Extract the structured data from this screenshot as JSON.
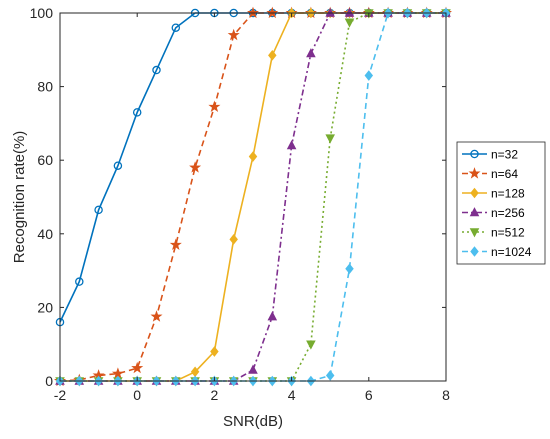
{
  "chart_data": {
    "type": "line",
    "xlabel": "SNR(dB)",
    "ylabel": "Recognition rate(%)",
    "xlim": [
      -2,
      8
    ],
    "ylim": [
      0,
      100
    ],
    "xticks": [
      "-2",
      "0",
      "2",
      "4",
      "6",
      "8"
    ],
    "yticks": [
      "0",
      "20",
      "40",
      "60",
      "80",
      "100"
    ],
    "grid": false,
    "legend_position": "right",
    "x": [
      -2,
      -1.5,
      -1,
      -0.5,
      0,
      0.5,
      1,
      1.5,
      2,
      2.5,
      3,
      3.5,
      4,
      4.5,
      5,
      5.5,
      6,
      6.5,
      7,
      7.5,
      8
    ],
    "series": [
      {
        "name": "n=32",
        "color": "#0072BD",
        "dash": "",
        "marker": "circle",
        "values": [
          16,
          27,
          46.5,
          58.5,
          73,
          84.5,
          96,
          100,
          100,
          100,
          100,
          100,
          100,
          100,
          100,
          100,
          100,
          100,
          100,
          100,
          100
        ]
      },
      {
        "name": "n=64",
        "color": "#D95319",
        "dash": "6,4",
        "marker": "star",
        "values": [
          0,
          0.3,
          1.5,
          2,
          3.5,
          17.5,
          37,
          58,
          74.5,
          94,
          100,
          100,
          100,
          100,
          100,
          100,
          100,
          100,
          100,
          100,
          100
        ]
      },
      {
        "name": "n=128",
        "color": "#EDB120",
        "dash": "",
        "marker": "diamond",
        "values": [
          0,
          0,
          0,
          0,
          0,
          0,
          0,
          2.5,
          8,
          38.5,
          61,
          88.5,
          100,
          100,
          100,
          100,
          100,
          100,
          100,
          100,
          100
        ]
      },
      {
        "name": "n=256",
        "color": "#7E2F8E",
        "dash": "6,3,2,3",
        "marker": "triangle-up",
        "values": [
          0,
          0,
          0,
          0,
          0,
          0,
          0,
          0,
          0,
          0,
          3,
          17.5,
          64,
          89,
          100,
          100,
          100,
          100,
          100,
          100,
          100
        ]
      },
      {
        "name": "n=512",
        "color": "#77AC30",
        "dash": "2,3",
        "marker": "triangle-down",
        "values": [
          0,
          0,
          0,
          0,
          0,
          0,
          0,
          0,
          0,
          0,
          0,
          0,
          0,
          10,
          66,
          97.5,
          100,
          100,
          100,
          100,
          100
        ]
      },
      {
        "name": "n=1024",
        "color": "#4DBEEE",
        "dash": "6,4",
        "marker": "diamond",
        "values": [
          0,
          0,
          0,
          0,
          0,
          0,
          0,
          0,
          0,
          0,
          0,
          0,
          0,
          0,
          1.5,
          30.5,
          83,
          100,
          100,
          100,
          100
        ]
      }
    ]
  }
}
